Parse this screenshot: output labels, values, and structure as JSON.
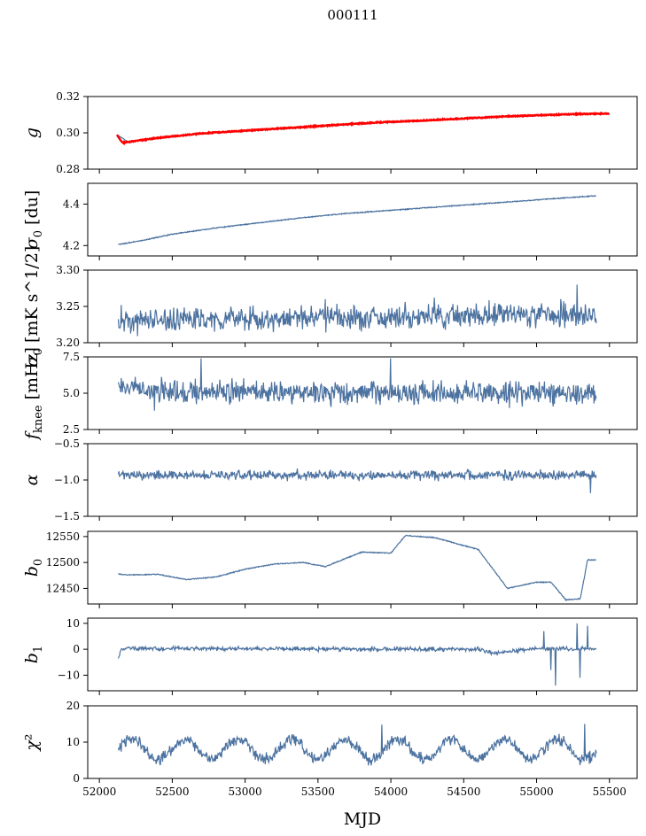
{
  "chart_data": {
    "type": "line",
    "title": "000111",
    "xlabel": "MJD",
    "xlim": [
      51920,
      55690
    ],
    "x_ticks": [
      52000,
      52500,
      53000,
      53500,
      54000,
      54500,
      55000,
      55500
    ],
    "x_tick_labels": [
      "52000",
      "52500",
      "53000",
      "53500",
      "54000",
      "54500",
      "55000",
      "55500"
    ],
    "x_data_range": [
      52130,
      55410
    ],
    "line_color": "#4c72a0",
    "fit_color": "#ff0000",
    "panels": [
      {
        "id": "g",
        "ylabel_main": "g",
        "ylabel_sub": "",
        "ylabel_rest": "",
        "ylim": [
          0.28,
          0.32
        ],
        "y_ticks": [
          0.28,
          0.3,
          0.32
        ],
        "y_tick_labels": [
          "0.28",
          "0.30",
          "0.32"
        ],
        "series": [
          {
            "name": "g",
            "color": "#4c72a0",
            "x": [
              52130,
              52200,
              52400,
              52700,
              53000,
              53300,
              53600,
              53900,
              54200,
              54500,
              54800,
              55100,
              55300,
              55500
            ],
            "y": [
              0.2985,
              0.2948,
              0.297,
              0.2995,
              0.301,
              0.3025,
              0.304,
              0.3055,
              0.3065,
              0.3078,
              0.309,
              0.3098,
              0.3105,
              0.3108
            ]
          },
          {
            "name": "fit",
            "color": "#ff0000",
            "x": [
              52120,
              52160,
              52200,
              52400,
              52700,
              53000,
              53300,
              53600,
              53900,
              54200,
              54500,
              54800,
              55100,
              55300,
              55500
            ],
            "y": [
              0.299,
              0.2945,
              0.295,
              0.2972,
              0.2997,
              0.3012,
              0.3027,
              0.3042,
              0.3057,
              0.3067,
              0.3079,
              0.3091,
              0.3099,
              0.3104,
              0.3106
            ]
          }
        ]
      },
      {
        "id": "sigma0",
        "ylabel_main": "σ",
        "ylabel_sub": "0",
        "ylabel_rest": " [du]",
        "ylim": [
          4.15,
          4.5
        ],
        "y_ticks": [
          4.2,
          4.4
        ],
        "y_tick_labels": [
          "4.2",
          "4.4"
        ],
        "series": [
          {
            "name": "sigma0",
            "color": "#4c72a0",
            "x": [
              52130,
              52300,
              52500,
              52800,
              53100,
              53400,
              53700,
              54000,
              54300,
              54600,
              54900,
              55200,
              55410
            ],
            "y": [
              4.205,
              4.225,
              4.255,
              4.285,
              4.31,
              4.335,
              4.355,
              4.37,
              4.385,
              4.4,
              4.415,
              4.43,
              4.44
            ]
          }
        ]
      },
      {
        "id": "sigma0_mk",
        "ylabel_main": "σ",
        "ylabel_sub": "0",
        "ylabel_rest": " [mK s^1/2]",
        "ylim": [
          3.2,
          3.3
        ],
        "y_ticks": [
          3.2,
          3.25,
          3.3
        ],
        "y_tick_labels": [
          "3.20",
          "3.25",
          "3.30"
        ],
        "series": [
          {
            "name": "sigma0_mk",
            "color": "#4c72a0",
            "x": [
              52130,
              55410
            ],
            "y": [
              3.23,
              3.24
            ],
            "noise": 0.012,
            "spikes": [
              [
                52150,
                3.252
              ],
              [
                53550,
                3.26
              ],
              [
                54300,
                3.262
              ],
              [
                55280,
                3.28
              ]
            ]
          }
        ]
      },
      {
        "id": "fknee",
        "ylabel_main": "f",
        "ylabel_sub": "knee",
        "ylabel_rest": " [mHz]",
        "ylim": [
          2.5,
          7.5
        ],
        "y_ticks": [
          2.5,
          5.0,
          7.5
        ],
        "y_tick_labels": [
          "2.5",
          "5.0",
          "7.5"
        ],
        "series": [
          {
            "name": "fknee",
            "color": "#4c72a0",
            "x": [
              52130,
              52400,
              55410
            ],
            "y": [
              5.6,
              5.1,
              5.0
            ],
            "noise": 0.6,
            "spikes": [
              [
                52700,
                7.4
              ],
              [
                54000,
                7.4
              ],
              [
                52380,
                3.8
              ]
            ]
          }
        ]
      },
      {
        "id": "alpha",
        "ylabel_main": "α",
        "ylabel_sub": "",
        "ylabel_rest": "",
        "ylim": [
          -1.5,
          -0.5
        ],
        "y_ticks": [
          -1.5,
          -1.0,
          -0.5
        ],
        "y_tick_labels": [
          "−1.5",
          "−1.0",
          "−0.5"
        ],
        "series": [
          {
            "name": "alpha",
            "color": "#4c72a0",
            "x": [
              52130,
              55410
            ],
            "y": [
              -0.93,
              -0.93
            ],
            "noise": 0.05,
            "spikes": [
              [
                55370,
                -1.18
              ]
            ]
          }
        ]
      },
      {
        "id": "b0",
        "ylabel_main": "b",
        "ylabel_sub": "0",
        "ylabel_rest": "",
        "ylim": [
          12420,
          12560
        ],
        "y_ticks": [
          12450,
          12500,
          12550
        ],
        "y_tick_labels": [
          "12450",
          "12500",
          "12550"
        ],
        "series": [
          {
            "name": "b0",
            "color": "#4c72a0",
            "x": [
              52130,
              52200,
              52400,
              52600,
              52800,
              53000,
              53200,
              53400,
              53550,
              53800,
              54000,
              54100,
              54300,
              54600,
              54800,
              55000,
              55100,
              55150,
              55200,
              55300,
              55350,
              55410
            ],
            "y": [
              12478,
              12476,
              12477,
              12467,
              12472,
              12487,
              12497,
              12500,
              12492,
              12520,
              12518,
              12552,
              12548,
              12525,
              12450,
              12462,
              12462,
              12445,
              12428,
              12430,
              12505,
              12505
            ]
          }
        ]
      },
      {
        "id": "b1",
        "ylabel_main": "b",
        "ylabel_sub": "1",
        "ylabel_rest": "",
        "ylim": [
          -16,
          12
        ],
        "y_ticks": [
          -10,
          0,
          10
        ],
        "y_tick_labels": [
          "−10",
          "0",
          "10"
        ],
        "series": [
          {
            "name": "b1",
            "color": "#4c72a0",
            "x": [
              52130,
              52150,
              52200,
              54600,
              54700,
              55000,
              55410
            ],
            "y": [
              -3.5,
              0.2,
              0.3,
              0.0,
              -1.5,
              0.3,
              0.2
            ],
            "noise": 0.6,
            "spikes": [
              [
                55050,
                7.0
              ],
              [
                55100,
                -8.0
              ],
              [
                55130,
                -14.0
              ],
              [
                55280,
                10.0
              ],
              [
                55300,
                -11.0
              ],
              [
                55350,
                9.0
              ]
            ]
          }
        ]
      },
      {
        "id": "chi2",
        "ylabel_main": "χ",
        "ylabel_sub": "",
        "ylabel_rest": "²",
        "ylim": [
          0,
          20
        ],
        "y_ticks": [
          0,
          10,
          20
        ],
        "y_tick_labels": [
          "0",
          "10",
          "20"
        ],
        "series": [
          {
            "name": "chi2",
            "color": "#4c72a0",
            "x": [
              52130,
              55410
            ],
            "y": [
              8,
              8
            ],
            "noise": 1.2,
            "period": 365,
            "amplitude": 2.8,
            "spikes": [
              [
                53940,
                14.8
              ],
              [
                55330,
                15.0
              ]
            ]
          }
        ]
      }
    ]
  }
}
